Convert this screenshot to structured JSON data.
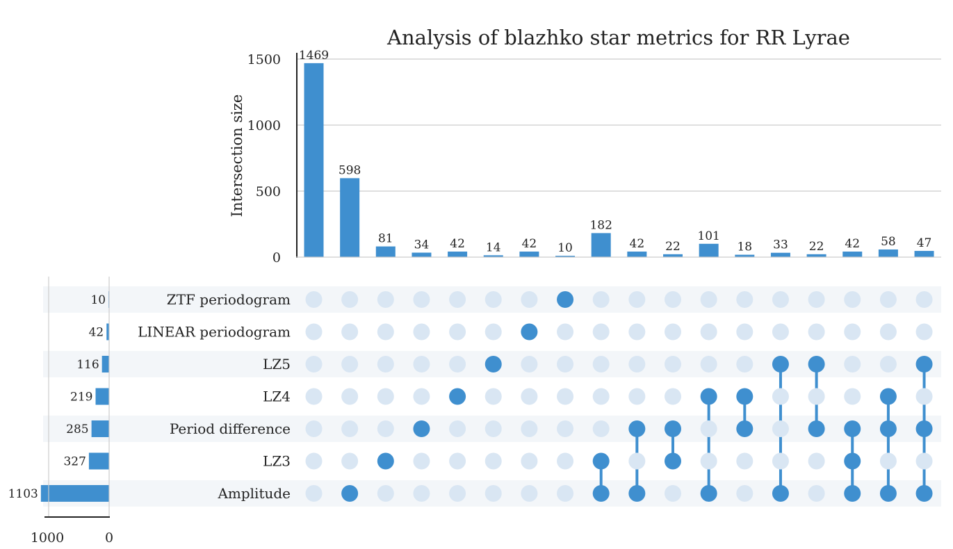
{
  "chart_data": {
    "type": "bar",
    "title": "Analysis of blazhko star metrics for RR Lyrae",
    "ylabel": "Intersection size",
    "ylim": [
      0,
      1600
    ],
    "yticks": [
      0,
      500,
      1000,
      1500
    ],
    "grid": true,
    "colors": {
      "bar": "#3f8fcf",
      "dot_active": "#3f8fcf",
      "dot_inactive": "#d9e6f3",
      "stripe": "#f3f6f9",
      "axis": "#222222",
      "grid": "#cccccc"
    },
    "sets": [
      {
        "name": "ZTF periodogram",
        "size": 10
      },
      {
        "name": "LINEAR periodogram",
        "size": 42
      },
      {
        "name": "LZ5",
        "size": 116
      },
      {
        "name": "LZ4",
        "size": 219
      },
      {
        "name": "Period difference",
        "size": 285
      },
      {
        "name": "LZ3",
        "size": 327
      },
      {
        "name": "Amplitude",
        "size": 1103
      }
    ],
    "set_size_ticks": [
      1000,
      0
    ],
    "intersections": [
      {
        "value": 1469,
        "sets": []
      },
      {
        "value": 598,
        "sets": [
          "Amplitude"
        ]
      },
      {
        "value": 81,
        "sets": [
          "LZ3"
        ]
      },
      {
        "value": 34,
        "sets": [
          "Period difference"
        ]
      },
      {
        "value": 42,
        "sets": [
          "LZ4"
        ]
      },
      {
        "value": 14,
        "sets": [
          "LZ5"
        ]
      },
      {
        "value": 42,
        "sets": [
          "LINEAR periodogram"
        ]
      },
      {
        "value": 10,
        "sets": [
          "ZTF periodogram"
        ]
      },
      {
        "value": 182,
        "sets": [
          "LZ3",
          "Amplitude"
        ]
      },
      {
        "value": 42,
        "sets": [
          "Period difference",
          "Amplitude"
        ]
      },
      {
        "value": 22,
        "sets": [
          "Period difference",
          "LZ3"
        ]
      },
      {
        "value": 101,
        "sets": [
          "LZ4",
          "Amplitude"
        ]
      },
      {
        "value": 18,
        "sets": [
          "LZ4",
          "Period difference"
        ]
      },
      {
        "value": 33,
        "sets": [
          "LZ5",
          "Amplitude"
        ]
      },
      {
        "value": 22,
        "sets": [
          "LZ5",
          "Period difference"
        ]
      },
      {
        "value": 42,
        "sets": [
          "Period difference",
          "LZ3",
          "Amplitude"
        ]
      },
      {
        "value": 58,
        "sets": [
          "LZ4",
          "Period difference",
          "Amplitude"
        ]
      },
      {
        "value": 47,
        "sets": [
          "LZ5",
          "Period difference",
          "Amplitude"
        ]
      }
    ]
  }
}
